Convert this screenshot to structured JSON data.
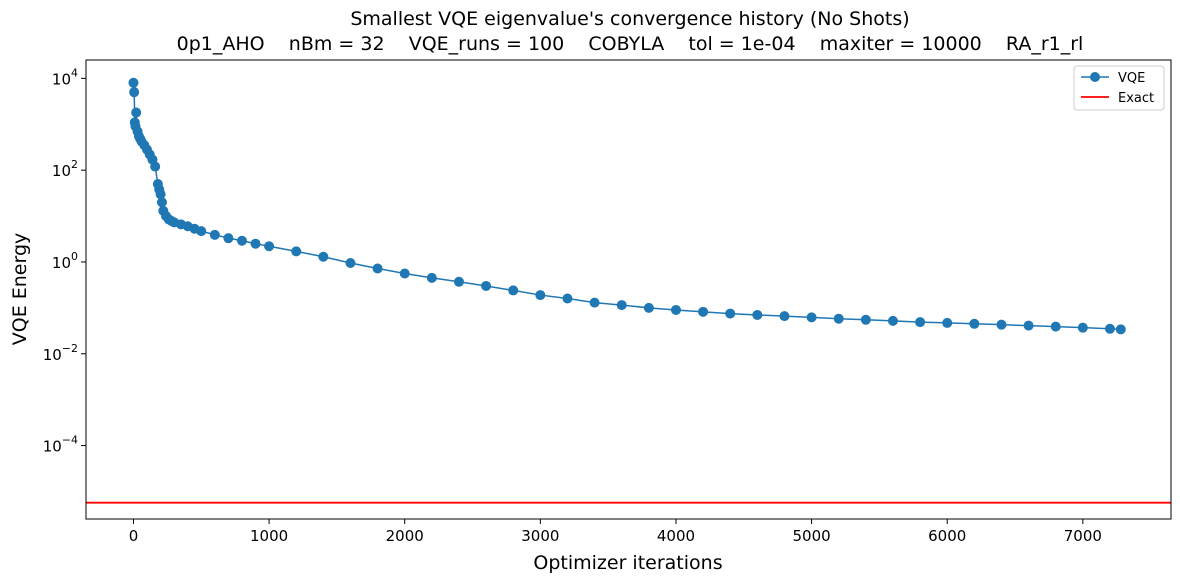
{
  "chart_data": {
    "type": "line",
    "title": "Smallest VQE eigenvalue's convergence history (No Shots)",
    "subtitle": "0p1_AHO    nBm = 32    VQE_runs = 100    COBYLA    tol = 1e-04    maxiter = 10000    RA_r1_rl",
    "xlabel": "Optimizer iterations",
    "ylabel": "VQE Energy",
    "yscale": "log",
    "xlim": [
      -350,
      7650
    ],
    "ylim_log10": [
      -5.6,
      4.4
    ],
    "x_ticks": [
      0,
      1000,
      2000,
      3000,
      4000,
      5000,
      6000,
      7000
    ],
    "x_tick_labels": [
      "0",
      "1000",
      "2000",
      "3000",
      "4000",
      "5000",
      "6000",
      "7000"
    ],
    "y_ticks_log10": [
      4,
      2,
      0,
      -2,
      -4
    ],
    "y_tick_labels": [
      {
        "base": "10",
        "exp": "4"
      },
      {
        "base": "10",
        "exp": "2"
      },
      {
        "base": "10",
        "exp": "0"
      },
      {
        "base": "10",
        "exp": "−2"
      },
      {
        "base": "10",
        "exp": "−4"
      }
    ],
    "grid": false,
    "legend_position": "top-right",
    "series": [
      {
        "name": "VQE",
        "color": "#1f77b4",
        "marker": "circle",
        "x": [
          0,
          5,
          10,
          15,
          20,
          30,
          40,
          50,
          60,
          80,
          100,
          120,
          140,
          160,
          180,
          190,
          200,
          210,
          220,
          240,
          260,
          280,
          300,
          350,
          400,
          450,
          500,
          600,
          700,
          800,
          900,
          1000,
          1200,
          1400,
          1600,
          1800,
          2000,
          2200,
          2400,
          2600,
          2800,
          3000,
          3200,
          3400,
          3600,
          3800,
          4000,
          4200,
          4400,
          4600,
          4800,
          5000,
          5200,
          5400,
          5600,
          5800,
          6000,
          6200,
          6400,
          6600,
          6800,
          7000,
          7200,
          7280
        ],
        "y": [
          8000,
          5000,
          1100,
          900,
          1800,
          700,
          550,
          480,
          420,
          350,
          280,
          220,
          170,
          120,
          50,
          38,
          30,
          20,
          13,
          10,
          8.5,
          7.8,
          7.3,
          6.6,
          6.0,
          5.3,
          4.7,
          3.9,
          3.3,
          2.9,
          2.5,
          2.2,
          1.7,
          1.3,
          0.95,
          0.72,
          0.56,
          0.45,
          0.37,
          0.3,
          0.24,
          0.19,
          0.16,
          0.13,
          0.115,
          0.1,
          0.09,
          0.082,
          0.075,
          0.07,
          0.066,
          0.062,
          0.058,
          0.055,
          0.052,
          0.049,
          0.047,
          0.045,
          0.043,
          0.041,
          0.039,
          0.037,
          0.035,
          0.034
        ]
      },
      {
        "name": "Exact",
        "color": "#ff0000",
        "type": "hline",
        "y": 5.7e-06
      }
    ]
  }
}
